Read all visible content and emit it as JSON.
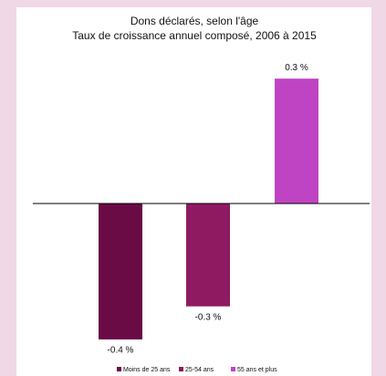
{
  "chart_data": {
    "type": "bar",
    "title": "Dons déclarés, selon l'âge",
    "subtitle": "Taux de croissance annuel composé, 2006 à 2015",
    "series": [
      {
        "name": "Moins de 25 ans",
        "color": "#6a0b45",
        "values": [
          -0.37
        ],
        "value_labels": [
          "-0.4 %"
        ]
      },
      {
        "name": "25-54 ans",
        "color": "#8f1a62",
        "values": [
          -0.28
        ],
        "value_labels": [
          "-0.3 %"
        ]
      },
      {
        "name": "55 ans et plus",
        "color": "#bf44c3",
        "values": [
          0.34
        ],
        "value_labels": [
          "0.3 %"
        ]
      }
    ],
    "ylim": [
      -0.4,
      0.4
    ],
    "legend": "bottom"
  }
}
